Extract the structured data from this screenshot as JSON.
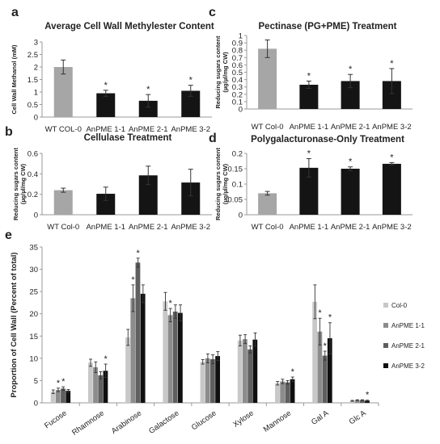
{
  "colors": {
    "wt": "#a6a6a6",
    "mut": "#141414",
    "col0": "#c8c8c8",
    "anpme11": "#8c8c8c",
    "anpme21": "#5f5f5f",
    "anpme32": "#101010",
    "axis": "#9a9a9a",
    "grid": "#e6e6e6"
  },
  "chart_data": [
    {
      "panel": "a",
      "type": "bar",
      "title": "Average Cell Wall Methylester Content",
      "ylabel": "Cell Wall Methanol (mM)",
      "ylim": [
        0,
        3
      ],
      "yticks": [
        "0",
        "0.5",
        "1",
        "1.5",
        "2",
        "2.5",
        "3"
      ],
      "categories": [
        "WT COL-0",
        "AnPME 1-1",
        "AnPME 2-1",
        "AnPME 3-2"
      ],
      "values": [
        2.0,
        0.95,
        0.65,
        1.05
      ],
      "errors": [
        0.28,
        0.12,
        0.25,
        0.22
      ],
      "significance": [
        "",
        "*",
        "*",
        "*"
      ]
    },
    {
      "panel": "c",
      "type": "bar",
      "title": "Pectinase (PG+PME) Treatment",
      "ylabel": "Reducing sugars content (µg/µl/mg CW)",
      "ylim": [
        0,
        1
      ],
      "yticks": [
        "0",
        "0.1",
        "0.2",
        "0.3",
        "0.4",
        "0.5",
        "0.6",
        "0.7",
        "0.8",
        "0.9",
        "1"
      ],
      "categories": [
        "WT Col-0",
        "AnPME 1-1",
        "AnPME 2-1",
        "AnPME 3-2"
      ],
      "values": [
        0.82,
        0.33,
        0.38,
        0.38
      ],
      "errors": [
        0.12,
        0.05,
        0.09,
        0.17
      ],
      "significance": [
        "",
        "*",
        "*",
        "*"
      ]
    },
    {
      "panel": "b",
      "type": "bar",
      "title": "Cellulase Treatment",
      "ylabel": "Reducing sugars content (µg/µl/mg CW)",
      "ylim": [
        0,
        0.6
      ],
      "yticks": [
        "0",
        "0.2",
        "0.4",
        "0.6"
      ],
      "categories": [
        "WT Col-0",
        "AnPME 1-1",
        "AnPME 2-1",
        "AnPME 3-2"
      ],
      "values": [
        0.24,
        0.205,
        0.385,
        0.315
      ],
      "errors": [
        0.02,
        0.065,
        0.09,
        0.13
      ],
      "significance": [
        "",
        "",
        "",
        ""
      ]
    },
    {
      "panel": "d",
      "type": "bar",
      "title": "Polygalacturonase-Only Treatment",
      "ylabel": "Reducing sugars content (µg/µl/mg CW)",
      "ylim": [
        0,
        0.2
      ],
      "yticks": [
        "0",
        "0.05",
        "0.1",
        "0.15",
        "0.2"
      ],
      "categories": [
        "WT Col-0",
        "AnPME 1-1",
        "AnPME 2-1",
        "AnPME 3-2"
      ],
      "values": [
        0.07,
        0.153,
        0.15,
        0.166
      ],
      "errors": [
        0.006,
        0.03,
        0.006,
        0.004
      ],
      "significance": [
        "",
        "*",
        "*",
        "*"
      ]
    },
    {
      "panel": "e",
      "type": "bar",
      "title": "",
      "ylabel": "Proportion of Cell Wall (Percent of total)",
      "ylim": [
        0,
        35
      ],
      "yticks": [
        "0",
        "5",
        "10",
        "15",
        "20",
        "25",
        "30",
        "35"
      ],
      "categories": [
        "Fucose",
        "Rhamnose",
        "Arabinose",
        "Galactose",
        "Glucose",
        "Xylose",
        "Mannose",
        "Gal A",
        "Glc A"
      ],
      "series": [
        {
          "name": "Col-0",
          "values": [
            2.5,
            9.0,
            14.7,
            22.8,
            9.2,
            14.0,
            4.4,
            22.7,
            0.45
          ],
          "errors": [
            0.4,
            0.8,
            1.8,
            2.0,
            0.5,
            1.2,
            0.4,
            3.8,
            0.1
          ],
          "significance": [
            "",
            "",
            "",
            "",
            "",
            "",
            "",
            "",
            ""
          ]
        },
        {
          "name": "AnPME 1-1",
          "values": [
            2.9,
            8.0,
            23.5,
            19.7,
            10.0,
            14.3,
            4.8,
            16.0,
            0.6
          ],
          "errors": [
            0.4,
            1.2,
            3.0,
            1.5,
            1.0,
            1.0,
            0.5,
            3.0,
            0.1
          ],
          "significance": [
            "*",
            "",
            "*",
            "*",
            "",
            "",
            "",
            "*",
            ""
          ]
        },
        {
          "name": "AnPME 2-1",
          "values": [
            3.2,
            6.2,
            31.5,
            20.5,
            9.8,
            12.0,
            4.6,
            10.6,
            0.6
          ],
          "errors": [
            0.4,
            0.8,
            1.0,
            1.5,
            1.0,
            0.8,
            0.4,
            1.0,
            0.1
          ],
          "significance": [
            "*",
            "",
            "*",
            "",
            "",
            "",
            "",
            "*",
            ""
          ]
        },
        {
          "name": "AnPME 3-2",
          "values": [
            2.7,
            7.2,
            24.5,
            20.2,
            10.5,
            14.2,
            5.3,
            14.5,
            0.5
          ],
          "errors": [
            0.3,
            1.5,
            2.0,
            1.8,
            1.0,
            1.5,
            0.5,
            3.5,
            0.1
          ],
          "significance": [
            "",
            "*",
            "",
            "",
            "",
            "",
            "*",
            "*",
            "*"
          ]
        }
      ],
      "legend": "right"
    }
  ]
}
